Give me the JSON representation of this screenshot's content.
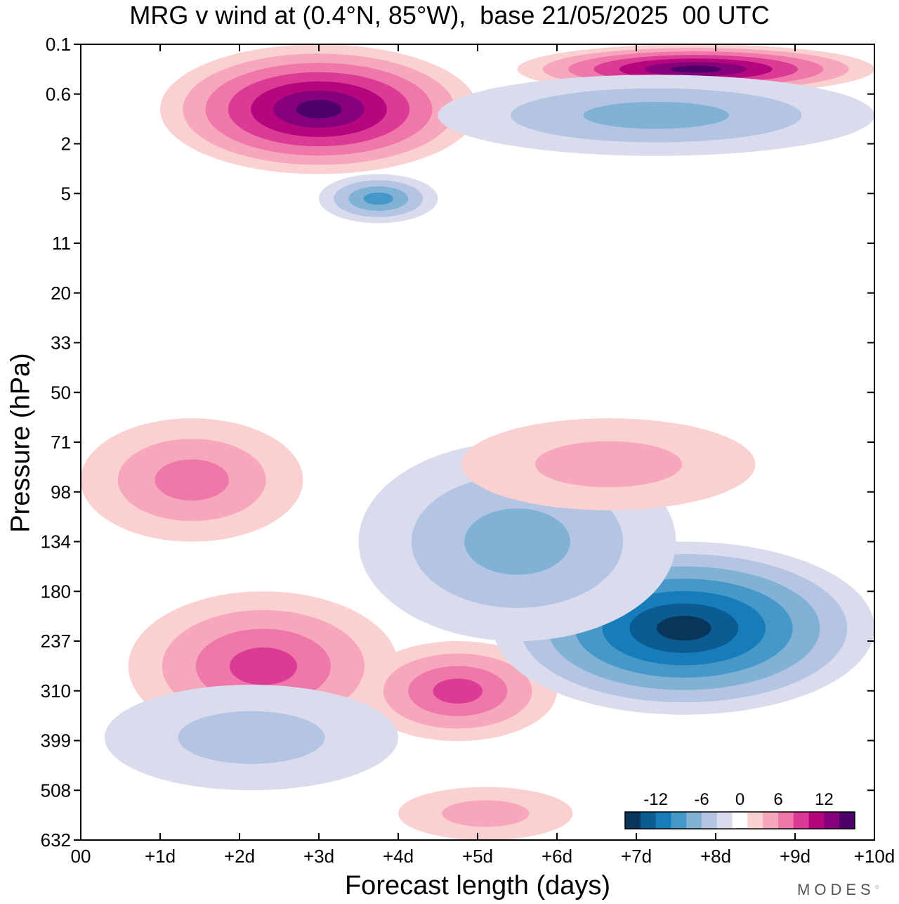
{
  "chart_data": {
    "type": "heatmap",
    "title": "MRG v wind at (0.4°N, 85°W),  base 21/05/2025  00 UTC",
    "xlabel": "Forecast length (days)",
    "ylabel": "Pressure (hPa)",
    "x_ticks": [
      "00",
      "+1d",
      "+2d",
      "+3d",
      "+4d",
      "+5d",
      "+6d",
      "+7d",
      "+8d",
      "+9d",
      "+10d"
    ],
    "y_ticks": [
      "0.1",
      "0.6",
      "2",
      "5",
      "11",
      "20",
      "33",
      "50",
      "71",
      "98",
      "134",
      "180",
      "237",
      "310",
      "399",
      "508",
      "632"
    ],
    "xlim": [
      0,
      10
    ],
    "colorbar": {
      "ticks": [
        "-12",
        "-6",
        "0",
        "6",
        "12"
      ],
      "colors": [
        "#08365a",
        "#0a5c92",
        "#167dba",
        "#4598c8",
        "#82b1d6",
        "#b3c5e2",
        "#dadcee",
        "#ffffff",
        "#fbd0d0",
        "#f7a7bb",
        "#ef77aa",
        "#db3a95",
        "#b50680",
        "#85007a",
        "#4d0067"
      ]
    },
    "features": [
      {
        "sign": "positive",
        "x": [
          0.6,
          4.0
        ],
        "p": [
          180,
          400
        ],
        "peak": 8
      },
      {
        "sign": "positive",
        "x": [
          3.5,
          6.0
        ],
        "p": [
          237,
          400
        ],
        "peak": 8
      },
      {
        "sign": "negative",
        "x": [
          5.2,
          10.0
        ],
        "p": [
          134,
          350
        ],
        "peak": -14
      },
      {
        "sign": "negative",
        "x": [
          3.5,
          7.5
        ],
        "p": [
          71,
          237
        ],
        "peak": -6
      },
      {
        "sign": "negative",
        "x": [
          0.3,
          4.0
        ],
        "p": [
          300,
          508
        ],
        "peak": -4
      },
      {
        "sign": "positive",
        "x": [
          0.0,
          2.8
        ],
        "p": [
          60,
          134
        ],
        "peak": 5
      },
      {
        "sign": "positive",
        "x": [
          4.8,
          8.5
        ],
        "p": [
          60,
          110
        ],
        "peak": 4
      },
      {
        "sign": "positive",
        "x": [
          1.0,
          5.0
        ],
        "p": [
          0.1,
          3.5
        ],
        "peak": 16
      },
      {
        "sign": "positive",
        "x": [
          5.5,
          10.0
        ],
        "p": [
          0.1,
          0.6
        ],
        "peak": 16
      },
      {
        "sign": "negative",
        "x": [
          4.5,
          10.0
        ],
        "p": [
          0.3,
          2.5
        ],
        "peak": -6
      },
      {
        "sign": "negative",
        "x": [
          3.0,
          4.5
        ],
        "p": [
          3.5,
          8
        ],
        "peak": -7
      },
      {
        "sign": "positive",
        "x": [
          4.0,
          6.2
        ],
        "p": [
          500,
          632
        ],
        "peak": 3
      }
    ]
  },
  "watermark": "MODES"
}
